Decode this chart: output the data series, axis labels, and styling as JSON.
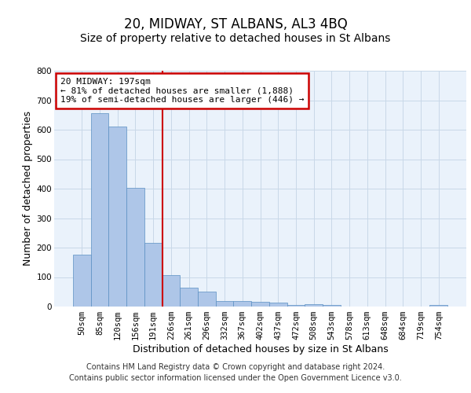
{
  "title": "20, MIDWAY, ST ALBANS, AL3 4BQ",
  "subtitle": "Size of property relative to detached houses in St Albans",
  "xlabel": "Distribution of detached houses by size in St Albans",
  "ylabel": "Number of detached properties",
  "categories": [
    "50sqm",
    "85sqm",
    "120sqm",
    "156sqm",
    "191sqm",
    "226sqm",
    "261sqm",
    "296sqm",
    "332sqm",
    "367sqm",
    "402sqm",
    "437sqm",
    "472sqm",
    "508sqm",
    "543sqm",
    "578sqm",
    "613sqm",
    "648sqm",
    "684sqm",
    "719sqm",
    "754sqm"
  ],
  "values": [
    175,
    655,
    610,
    403,
    215,
    108,
    65,
    50,
    20,
    18,
    15,
    13,
    5,
    8,
    5,
    1,
    1,
    0,
    0,
    0,
    5
  ],
  "bar_color": "#aec6e8",
  "bar_edge_color": "#5a8fc2",
  "property_line_index": 4,
  "property_line_color": "#cc0000",
  "annotation_line1": "20 MIDWAY: 197sqm",
  "annotation_line2": "← 81% of detached houses are smaller (1,888)",
  "annotation_line3": "19% of semi-detached houses are larger (446) →",
  "annotation_box_color": "#cc0000",
  "ylim": [
    0,
    800
  ],
  "yticks": [
    0,
    100,
    200,
    300,
    400,
    500,
    600,
    700,
    800
  ],
  "grid_color": "#c8d8e8",
  "background_color": "#eaf2fb",
  "footer_line1": "Contains HM Land Registry data © Crown copyright and database right 2024.",
  "footer_line2": "Contains public sector information licensed under the Open Government Licence v3.0.",
  "title_fontsize": 12,
  "subtitle_fontsize": 10,
  "footer_fontsize": 7,
  "ylabel_fontsize": 9,
  "xlabel_fontsize": 9,
  "annotation_fontsize": 8,
  "tick_fontsize": 7.5
}
